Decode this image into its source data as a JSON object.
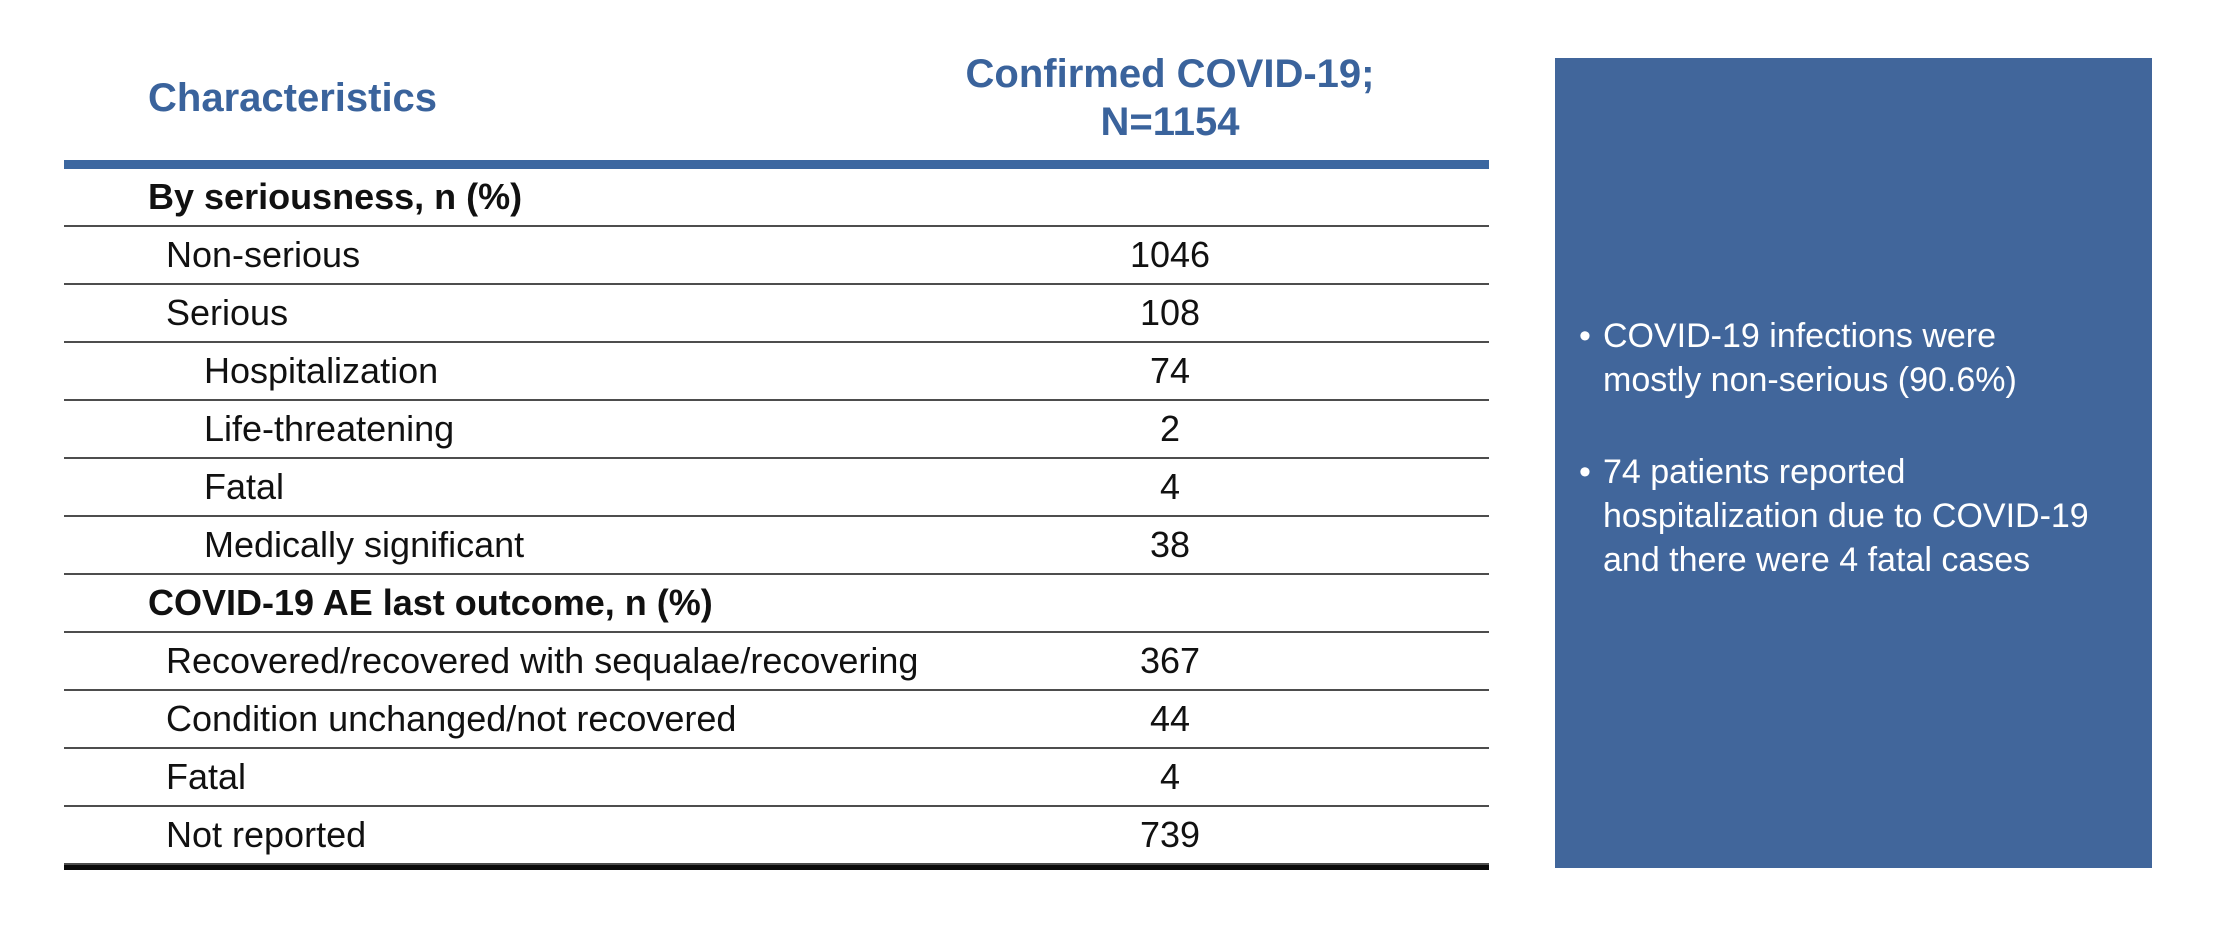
{
  "table": {
    "header": {
      "col1": "Characteristics",
      "col2_line1": "Confirmed COVID-19;",
      "col2_line2": "N=1154"
    },
    "rows": [
      {
        "label": "By seriousness, n (%)",
        "value": ""
      },
      {
        "label": "Non-serious",
        "value": "1046"
      },
      {
        "label": "Serious",
        "value": "108"
      },
      {
        "label": "Hospitalization",
        "value": "74"
      },
      {
        "label": "Life-threatening",
        "value": "2"
      },
      {
        "label": "Fatal",
        "value": "4"
      },
      {
        "label": "Medically significant",
        "value": "38"
      },
      {
        "label": "COVID-19 AE last outcome, n (%)",
        "value": ""
      },
      {
        "label": "Recovered/recovered with sequalae/recovering",
        "value": "367"
      },
      {
        "label": "Condition unchanged/not recovered",
        "value": "44"
      },
      {
        "label": "Fatal",
        "value": "4"
      },
      {
        "label": "Not reported",
        "value": "739"
      }
    ]
  },
  "notes": {
    "bullet_glyph": "•",
    "bullets": [
      {
        "lines": [
          "COVID-19 infections were",
          "mostly non-serious (90.6%)"
        ]
      },
      {
        "lines": [
          "74 patients reported",
          "hospitalization due to COVID-19",
          "and there were 4 fatal cases"
        ]
      }
    ]
  },
  "colors": {
    "header_text_blue": "#3a639c",
    "table_rule_blue": "#3c67a0",
    "notes_panel_blue": "#41669b",
    "row_separator_gray": "#4d4d4d",
    "table_bottom_black": "#0a0a0a",
    "notes_text": "#ffffff",
    "body_text": "#111111",
    "background": "#ffffff"
  }
}
